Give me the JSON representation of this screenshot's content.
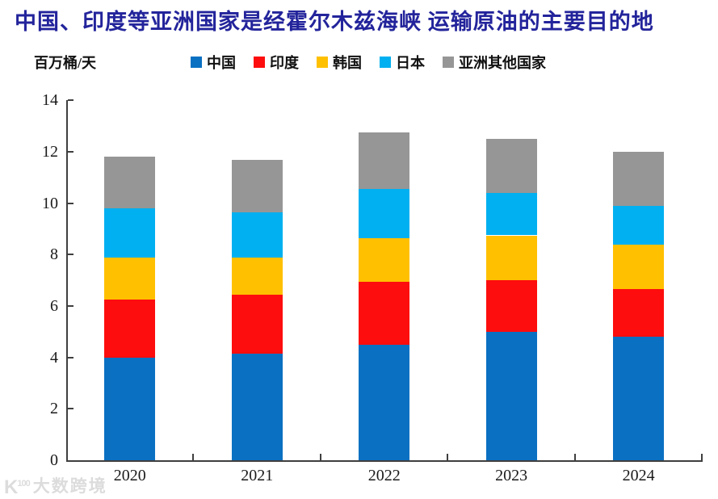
{
  "title": {
    "text": "中国、印度等亚洲国家是经霍尔木兹海峡 运输原油的主要目的地",
    "color": "#23249b"
  },
  "unit_label": "百万桶/天",
  "watermark": {
    "logo": "K100",
    "text": "大数跨境"
  },
  "colors": {
    "china": "#0a70c2",
    "india": "#fd0d0d",
    "korea": "#ffc000",
    "japan": "#00b0f0",
    "other_asia": "#969696",
    "axis": "#3f3f3f",
    "title": "#23249b",
    "watermark": "#dcdcdc"
  },
  "chart_data": {
    "type": "bar",
    "stacked": true,
    "title": "中国、印度等亚洲国家是经霍尔木兹海峡 运输原油的主要目的地",
    "ylabel": "百万桶/天",
    "categories": [
      "2020",
      "2021",
      "2022",
      "2023",
      "2024"
    ],
    "series": [
      {
        "name": "中国",
        "color": "#0a70c2",
        "values": [
          4.0,
          4.15,
          4.5,
          5.0,
          4.8
        ]
      },
      {
        "name": "印度",
        "color": "#fd0d0d",
        "values": [
          2.25,
          2.3,
          2.45,
          2.0,
          1.85
        ]
      },
      {
        "name": "韩国",
        "color": "#ffc000",
        "values": [
          1.65,
          1.45,
          1.7,
          1.75,
          1.75
        ]
      },
      {
        "name": "日本",
        "color": "#00b0f0",
        "values": [
          1.9,
          1.75,
          1.9,
          1.65,
          1.5
        ]
      },
      {
        "name": "亚洲其他国家",
        "color": "#969696",
        "values": [
          2.0,
          2.05,
          2.2,
          2.1,
          2.1
        ]
      }
    ],
    "totals": [
      11.8,
      11.7,
      12.75,
      12.5,
      12.0
    ],
    "ylim": [
      0,
      14
    ],
    "ytick_step": 2,
    "yticks": [
      0,
      2,
      4,
      6,
      8,
      10,
      12,
      14
    ],
    "grid": false,
    "legend_position": "top"
  }
}
